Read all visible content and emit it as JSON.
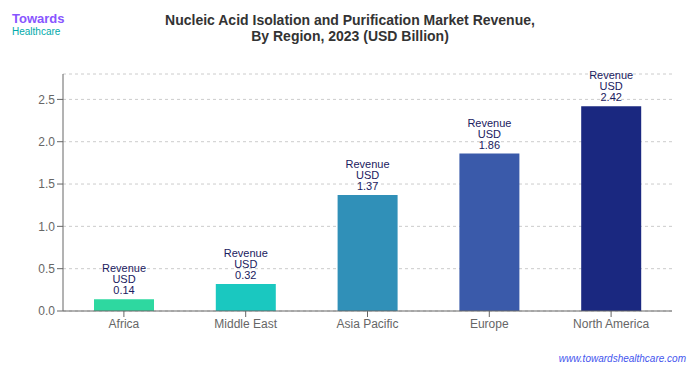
{
  "chart_data": {
    "type": "bar",
    "title": "Nucleic Acid Isolation and Purification Market Revenue,",
    "subtitle": "By Region, 2023 (USD Billion)",
    "categories": [
      "Africa",
      "Middle East",
      "Asia Pacific",
      "Europe",
      "North America"
    ],
    "values": [
      0.14,
      0.32,
      1.37,
      1.86,
      2.42
    ],
    "value_labels": [
      "Revenue USD 0.14",
      "Revenue USD 0.32",
      "Revenue USD 1.37",
      "Revenue USD 1.86",
      "Revenue USD 2.42"
    ],
    "data_labels": true,
    "colors": [
      "#2ed8a0",
      "#1ac8c0",
      "#3090b8",
      "#3a5aaa",
      "#1a2880"
    ],
    "ylim": [
      0,
      2.8
    ],
    "yticks": [
      {
        "value": 0,
        "label": "0.0"
      },
      0.5,
      {
        "value": 1,
        "label": "1.0"
      },
      1.5,
      {
        "value": 2,
        "label": "2.0"
      },
      2.5
    ],
    "grid": true,
    "annotations": [
      "Towards",
      "Healthcare",
      "www.towardshealthcare.com"
    ]
  }
}
